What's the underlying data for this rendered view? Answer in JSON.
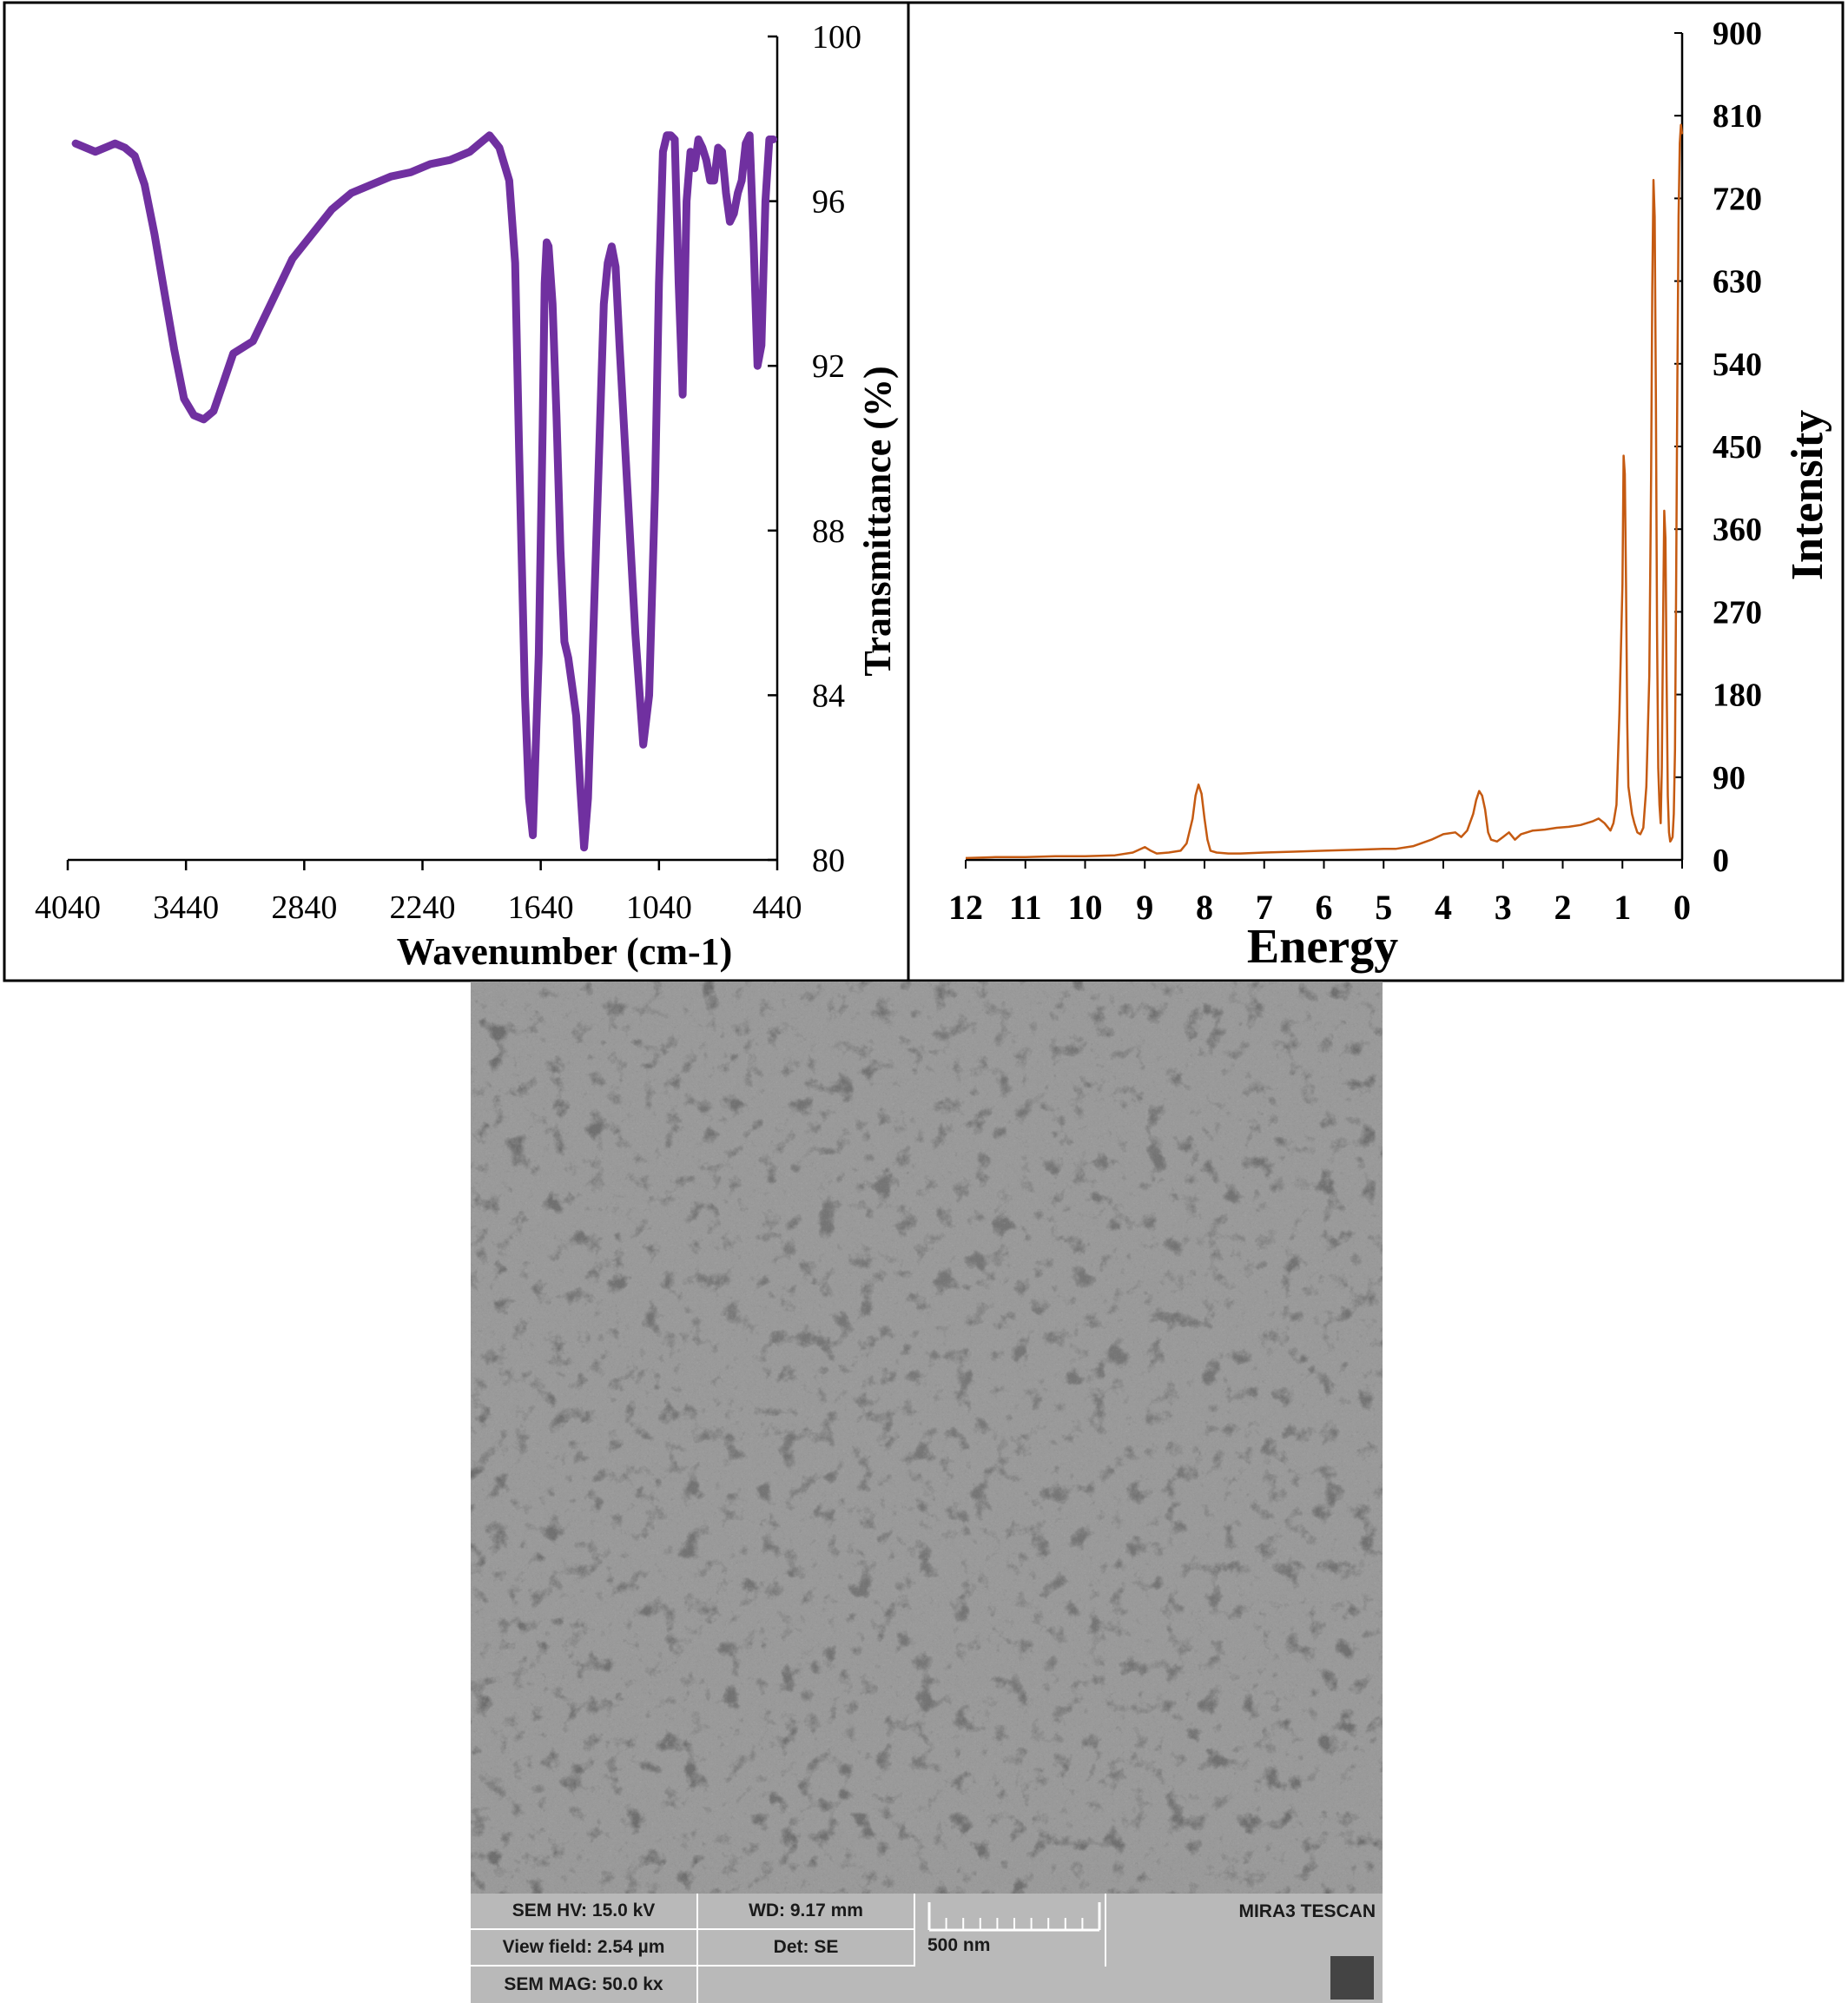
{
  "chart_data": [
    {
      "type": "line",
      "title": "",
      "xlabel": "Wavenumber (cm-1)",
      "ylabel": "Transmittance (%)",
      "xlim": [
        4040,
        440
      ],
      "ylim": [
        80,
        100
      ],
      "x_ticks": [
        "4040",
        "3440",
        "2840",
        "2240",
        "1640",
        "1040",
        "440"
      ],
      "y_ticks": [
        "100",
        "96",
        "92",
        "88",
        "84",
        "80"
      ],
      "y_axis_side": "right",
      "grid": false,
      "series": [
        {
          "color": "#7030a0",
          "x": [
            4000,
            3900,
            3800,
            3750,
            3700,
            3650,
            3600,
            3550,
            3500,
            3450,
            3400,
            3350,
            3300,
            3250,
            3200,
            3100,
            3000,
            2900,
            2800,
            2700,
            2600,
            2500,
            2400,
            2300,
            2200,
            2100,
            2000,
            1950,
            1900,
            1850,
            1800,
            1770,
            1750,
            1720,
            1700,
            1680,
            1650,
            1630,
            1620,
            1610,
            1600,
            1580,
            1560,
            1540,
            1520,
            1500,
            1480,
            1460,
            1440,
            1420,
            1400,
            1380,
            1360,
            1340,
            1320,
            1300,
            1280,
            1260,
            1240,
            1200,
            1160,
            1120,
            1090,
            1060,
            1040,
            1020,
            1000,
            980,
            960,
            940,
            920,
            900,
            880,
            860,
            840,
            820,
            800,
            780,
            760,
            740,
            720,
            700,
            680,
            660,
            640,
            620,
            600,
            580,
            560,
            540,
            520,
            500,
            480,
            460
          ],
          "y": [
            97.4,
            97.2,
            97.4,
            97.3,
            97.1,
            96.4,
            95.2,
            93.8,
            92.4,
            91.2,
            90.8,
            90.7,
            90.9,
            91.6,
            92.3,
            92.6,
            93.6,
            94.6,
            95.2,
            95.8,
            96.2,
            96.4,
            96.6,
            96.7,
            96.9,
            97.0,
            97.2,
            97.4,
            97.6,
            97.3,
            96.5,
            94.5,
            90.0,
            84.0,
            81.5,
            80.6,
            85.0,
            90.5,
            94.0,
            95.0,
            94.9,
            93.5,
            90.8,
            87.5,
            85.3,
            84.9,
            84.2,
            83.5,
            81.8,
            80.3,
            81.5,
            84.5,
            87.5,
            90.5,
            93.5,
            94.5,
            94.9,
            94.4,
            92.5,
            89.0,
            85.5,
            82.8,
            84.0,
            89.0,
            94.0,
            97.2,
            97.6,
            97.6,
            97.5,
            94.0,
            91.3,
            96.0,
            97.2,
            96.8,
            97.5,
            97.3,
            97.0,
            96.5,
            96.5,
            97.3,
            97.2,
            96.2,
            95.5,
            95.7,
            96.2,
            96.5,
            97.4,
            97.6,
            95.0,
            92.0,
            92.5,
            96.0,
            97.5,
            97.5
          ]
        }
      ]
    },
    {
      "type": "line",
      "title": "",
      "xlabel": "Energy",
      "ylabel": "Intensity",
      "xlim": [
        12,
        0
      ],
      "ylim": [
        0,
        900
      ],
      "x_ticks": [
        "12",
        "11",
        "10",
        "9",
        "8",
        "7",
        "6",
        "5",
        "4",
        "3",
        "2",
        "1",
        "0"
      ],
      "y_ticks": [
        "900",
        "810",
        "720",
        "630",
        "540",
        "450",
        "360",
        "270",
        "180",
        "90",
        "0"
      ],
      "y_axis_side": "right",
      "grid": false,
      "series": [
        {
          "color": "#c55a11",
          "x": [
            12.0,
            11.5,
            11.0,
            10.5,
            10.0,
            9.5,
            9.2,
            9.0,
            8.9,
            8.8,
            8.6,
            8.4,
            8.3,
            8.2,
            8.15,
            8.1,
            8.05,
            8.0,
            7.95,
            7.9,
            7.8,
            7.6,
            7.4,
            7.0,
            6.5,
            6.0,
            5.5,
            5.0,
            4.8,
            4.5,
            4.2,
            4.0,
            3.8,
            3.7,
            3.6,
            3.5,
            3.45,
            3.4,
            3.35,
            3.3,
            3.25,
            3.2,
            3.1,
            3.0,
            2.9,
            2.8,
            2.7,
            2.6,
            2.5,
            2.3,
            2.1,
            1.9,
            1.7,
            1.5,
            1.4,
            1.3,
            1.2,
            1.15,
            1.1,
            1.05,
            1.0,
            0.98,
            0.96,
            0.94,
            0.92,
            0.9,
            0.88,
            0.86,
            0.84,
            0.8,
            0.75,
            0.7,
            0.65,
            0.6,
            0.55,
            0.52,
            0.5,
            0.48,
            0.46,
            0.44,
            0.42,
            0.4,
            0.38,
            0.36,
            0.34,
            0.32,
            0.3,
            0.28,
            0.26,
            0.24,
            0.22,
            0.2,
            0.18,
            0.16,
            0.14,
            0.12,
            0.1,
            0.08,
            0.06,
            0.04,
            0.02,
            0.0
          ],
          "y": [
            2,
            3,
            3,
            4,
            4,
            5,
            8,
            14,
            10,
            7,
            8,
            10,
            18,
            45,
            70,
            82,
            72,
            45,
            22,
            10,
            8,
            7,
            7,
            8,
            9,
            10,
            11,
            12,
            12,
            15,
            22,
            28,
            30,
            25,
            32,
            50,
            65,
            75,
            70,
            55,
            30,
            22,
            20,
            25,
            30,
            22,
            28,
            30,
            32,
            33,
            35,
            36,
            38,
            42,
            45,
            40,
            32,
            40,
            60,
            160,
            300,
            440,
            420,
            300,
            150,
            80,
            70,
            60,
            50,
            40,
            30,
            28,
            35,
            80,
            200,
            420,
            620,
            740,
            700,
            500,
            250,
            100,
            60,
            40,
            100,
            250,
            380,
            350,
            200,
            70,
            30,
            20,
            22,
            25,
            50,
            120,
            300,
            520,
            700,
            780,
            800,
            790
          ]
        }
      ]
    }
  ],
  "sem_info": {
    "hv": "SEM HV: 15.0 kV",
    "wd": "WD: 9.17 mm",
    "view_field": "View field: 2.54 µm",
    "det": "Det: SE",
    "scale": "500 nm",
    "mag": "SEM MAG: 50.0 kx",
    "brand": "MIRA3 TESCAN"
  }
}
